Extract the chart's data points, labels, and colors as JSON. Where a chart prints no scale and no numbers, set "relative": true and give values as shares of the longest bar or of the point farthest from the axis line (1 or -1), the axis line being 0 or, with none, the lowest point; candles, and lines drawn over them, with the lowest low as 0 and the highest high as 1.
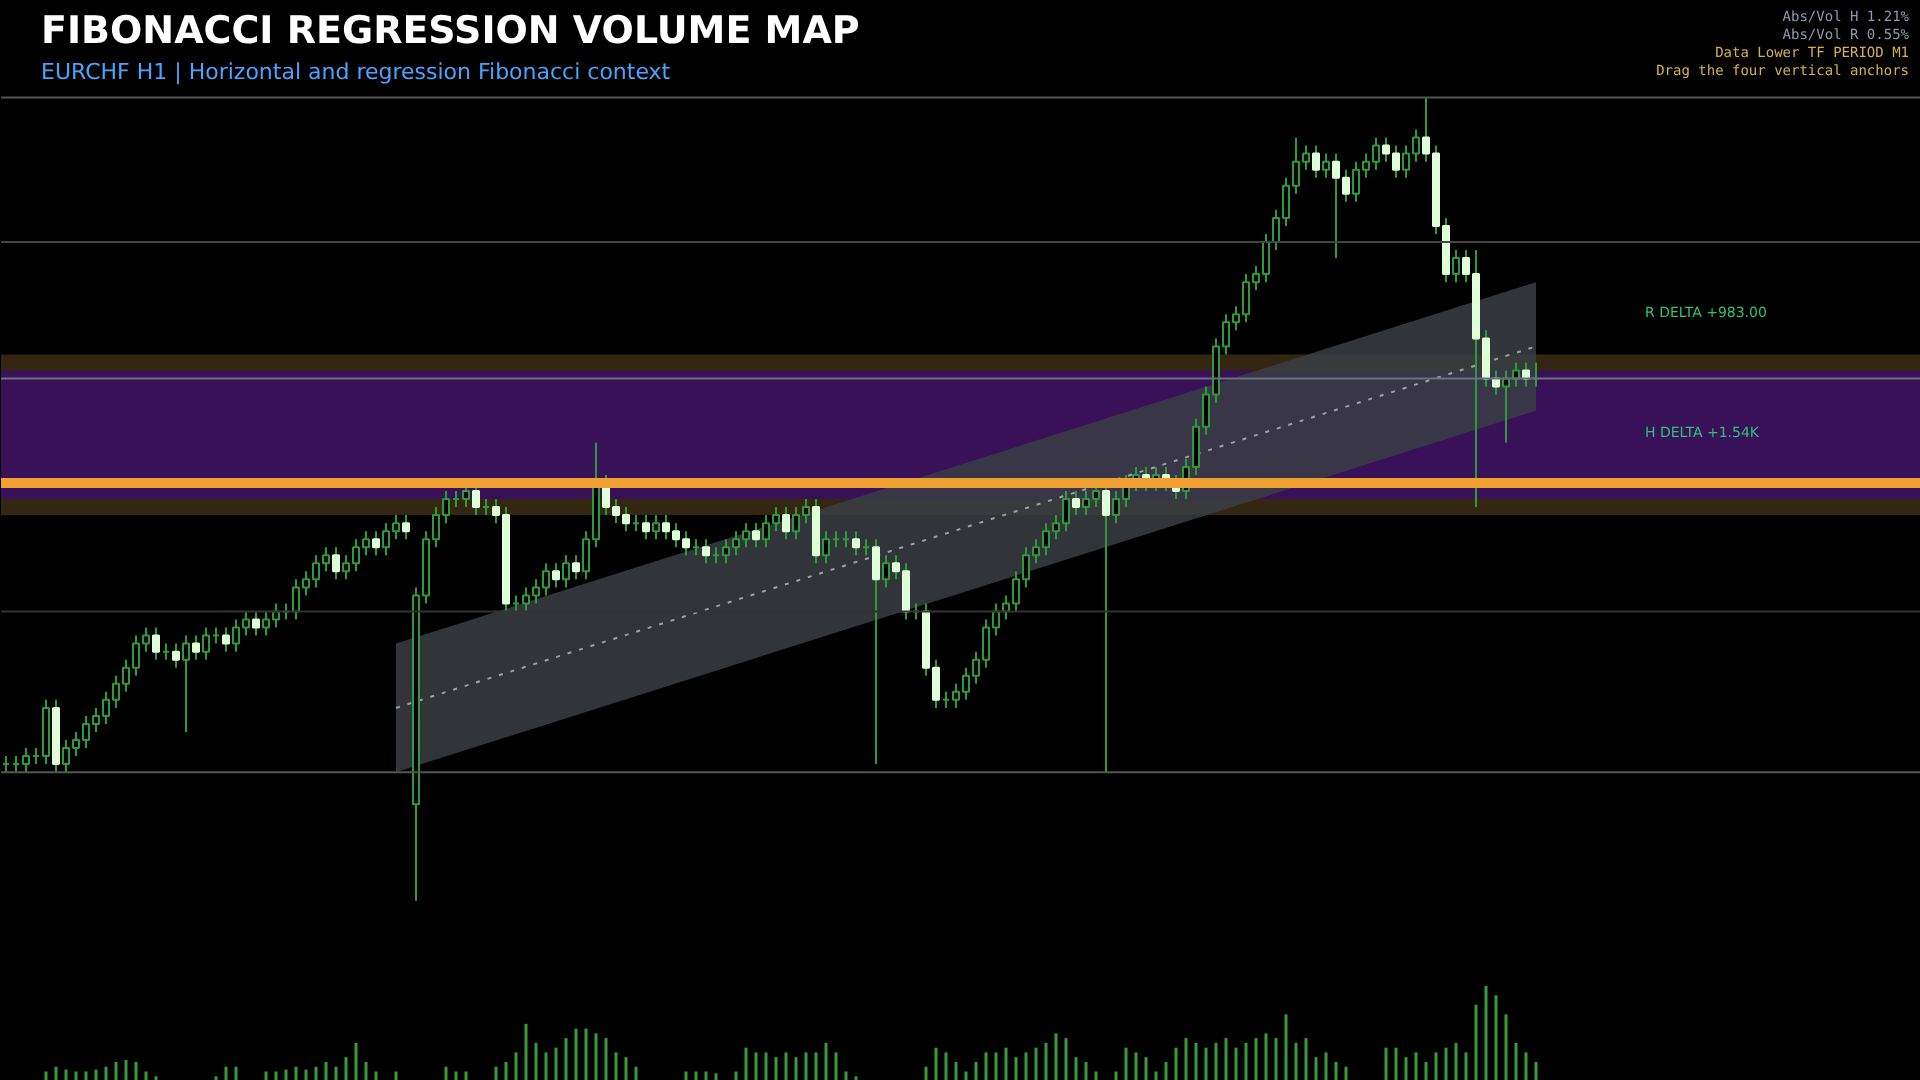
{
  "chart_data": [
    {
      "type": "candlestick",
      "title": "FIBONACCI REGRESSION VOLUME MAP",
      "subtitle": "EURCHF H1  |  Horizontal and regression Fibonacci context",
      "relative": true,
      "tick_labels": false,
      "grid": false,
      "categories": [
        null,
        null,
        null,
        null,
        null,
        null,
        null,
        null,
        null,
        null,
        null,
        null,
        null,
        null,
        null,
        null,
        null,
        null,
        null,
        null,
        null,
        null,
        null,
        null,
        null,
        null,
        null,
        null,
        null,
        null,
        null,
        null,
        null,
        null,
        null,
        null,
        null,
        null,
        null,
        null,
        null,
        null,
        null,
        null,
        null,
        null,
        null,
        null,
        null,
        null,
        null,
        null,
        null,
        null,
        null,
        null,
        null,
        null,
        null,
        null,
        null,
        null,
        null,
        null,
        null,
        null,
        null,
        null,
        null,
        null,
        null,
        null,
        null,
        null,
        null,
        null,
        null,
        null,
        null,
        null,
        null,
        null,
        null,
        null,
        null,
        null,
        null,
        null,
        null,
        null,
        null,
        null,
        null,
        null,
        null,
        null,
        null,
        null,
        null,
        null,
        null,
        null,
        null,
        null,
        null,
        null,
        null,
        null,
        null,
        null,
        null,
        null,
        null,
        null,
        null,
        null,
        null,
        null,
        null,
        null,
        null,
        null,
        null,
        null,
        null,
        null,
        null,
        null,
        null,
        null,
        null,
        null,
        null,
        null,
        null,
        null,
        null,
        null,
        null,
        null,
        null,
        null,
        null,
        null,
        null,
        null,
        null,
        null,
        null,
        null,
        null,
        null,
        null,
        null
      ],
      "ohlc": [
        [
          0.17,
          0.18,
          0.16,
          0.17
        ],
        [
          0.17,
          0.18,
          0.16,
          0.17
        ],
        [
          0.17,
          0.19,
          0.16,
          0.18
        ],
        [
          0.18,
          0.19,
          0.17,
          0.18
        ],
        [
          0.18,
          0.25,
          0.17,
          0.24
        ],
        [
          0.24,
          0.25,
          0.16,
          0.17
        ],
        [
          0.17,
          0.2,
          0.16,
          0.19
        ],
        [
          0.19,
          0.21,
          0.18,
          0.2
        ],
        [
          0.2,
          0.23,
          0.19,
          0.22
        ],
        [
          0.22,
          0.24,
          0.21,
          0.23
        ],
        [
          0.23,
          0.26,
          0.22,
          0.25
        ],
        [
          0.25,
          0.28,
          0.24,
          0.27
        ],
        [
          0.27,
          0.3,
          0.26,
          0.29
        ],
        [
          0.29,
          0.33,
          0.28,
          0.32
        ],
        [
          0.32,
          0.34,
          0.31,
          0.33
        ],
        [
          0.33,
          0.34,
          0.3,
          0.31
        ],
        [
          0.31,
          0.32,
          0.3,
          0.31
        ],
        [
          0.31,
          0.32,
          0.29,
          0.3
        ],
        [
          0.3,
          0.33,
          0.21,
          0.32
        ],
        [
          0.32,
          0.33,
          0.3,
          0.31
        ],
        [
          0.31,
          0.34,
          0.3,
          0.33
        ],
        [
          0.33,
          0.34,
          0.32,
          0.33
        ],
        [
          0.33,
          0.34,
          0.31,
          0.32
        ],
        [
          0.32,
          0.35,
          0.31,
          0.34
        ],
        [
          0.34,
          0.36,
          0.33,
          0.35
        ],
        [
          0.35,
          0.36,
          0.33,
          0.34
        ],
        [
          0.34,
          0.36,
          0.33,
          0.35
        ],
        [
          0.35,
          0.37,
          0.34,
          0.36
        ],
        [
          0.36,
          0.37,
          0.35,
          0.36
        ],
        [
          0.36,
          0.4,
          0.35,
          0.39
        ],
        [
          0.39,
          0.41,
          0.38,
          0.4
        ],
        [
          0.4,
          0.43,
          0.39,
          0.42
        ],
        [
          0.42,
          0.44,
          0.41,
          0.43
        ],
        [
          0.43,
          0.44,
          0.4,
          0.41
        ],
        [
          0.41,
          0.43,
          0.4,
          0.42
        ],
        [
          0.42,
          0.45,
          0.41,
          0.44
        ],
        [
          0.44,
          0.46,
          0.43,
          0.45
        ],
        [
          0.45,
          0.46,
          0.43,
          0.44
        ],
        [
          0.44,
          0.47,
          0.43,
          0.46
        ],
        [
          0.46,
          0.48,
          0.45,
          0.47
        ],
        [
          0.47,
          0.48,
          0.45,
          0.46
        ],
        [
          0.12,
          0.39,
          0,
          0.38
        ],
        [
          0.38,
          0.46,
          0.37,
          0.45
        ],
        [
          0.45,
          0.49,
          0.44,
          0.48
        ],
        [
          0.48,
          0.51,
          0.47,
          0.5
        ],
        [
          0.5,
          0.51,
          0.49,
          0.5
        ],
        [
          0.5,
          0.52,
          0.49,
          0.51
        ],
        [
          0.51,
          0.52,
          0.48,
          0.49
        ],
        [
          0.49,
          0.5,
          0.48,
          0.49
        ],
        [
          0.49,
          0.5,
          0.47,
          0.48
        ],
        [
          0.48,
          0.49,
          0.36,
          0.37
        ],
        [
          0.37,
          0.38,
          0.36,
          0.37
        ],
        [
          0.37,
          0.39,
          0.36,
          0.38
        ],
        [
          0.38,
          0.4,
          0.37,
          0.39
        ],
        [
          0.39,
          0.42,
          0.38,
          0.41
        ],
        [
          0.41,
          0.42,
          0.39,
          0.4
        ],
        [
          0.4,
          0.43,
          0.39,
          0.42
        ],
        [
          0.42,
          0.43,
          0.4,
          0.41
        ],
        [
          0.41,
          0.46,
          0.4,
          0.45
        ],
        [
          0.45,
          0.57,
          0.44,
          0.52
        ],
        [
          0.52,
          0.53,
          0.48,
          0.49
        ],
        [
          0.49,
          0.5,
          0.47,
          0.48
        ],
        [
          0.48,
          0.49,
          0.46,
          0.47
        ],
        [
          0.47,
          0.48,
          0.46,
          0.47
        ],
        [
          0.47,
          0.48,
          0.45,
          0.46
        ],
        [
          0.46,
          0.48,
          0.45,
          0.47
        ],
        [
          0.47,
          0.48,
          0.45,
          0.46
        ],
        [
          0.46,
          0.47,
          0.44,
          0.45
        ],
        [
          0.45,
          0.46,
          0.43,
          0.44
        ],
        [
          0.44,
          0.45,
          0.43,
          0.44
        ],
        [
          0.44,
          0.45,
          0.42,
          0.43
        ],
        [
          0.43,
          0.44,
          0.42,
          0.43
        ],
        [
          0.43,
          0.45,
          0.42,
          0.44
        ],
        [
          0.44,
          0.46,
          0.43,
          0.45
        ],
        [
          0.45,
          0.47,
          0.44,
          0.46
        ],
        [
          0.46,
          0.47,
          0.44,
          0.45
        ],
        [
          0.45,
          0.48,
          0.44,
          0.47
        ],
        [
          0.47,
          0.49,
          0.46,
          0.48
        ],
        [
          0.48,
          0.49,
          0.45,
          0.46
        ],
        [
          0.46,
          0.49,
          0.45,
          0.48
        ],
        [
          0.48,
          0.5,
          0.47,
          0.49
        ],
        [
          0.49,
          0.5,
          0.42,
          0.43
        ],
        [
          0.43,
          0.46,
          0.42,
          0.45
        ],
        [
          0.45,
          0.46,
          0.44,
          0.45
        ],
        [
          0.45,
          0.46,
          0.44,
          0.45
        ],
        [
          0.45,
          0.46,
          0.43,
          0.44
        ],
        [
          0.44,
          0.45,
          0.43,
          0.44
        ],
        [
          0.44,
          0.45,
          0.17,
          0.4
        ],
        [
          0.4,
          0.43,
          0.39,
          0.42
        ],
        [
          0.42,
          0.43,
          0.4,
          0.41
        ],
        [
          0.41,
          0.42,
          0.35,
          0.36
        ],
        [
          0.36,
          0.37,
          0.35,
          0.36
        ],
        [
          0.36,
          0.37,
          0.28,
          0.29
        ],
        [
          0.29,
          0.3,
          0.24,
          0.25
        ],
        [
          0.25,
          0.26,
          0.24,
          0.25
        ],
        [
          0.25,
          0.27,
          0.24,
          0.26
        ],
        [
          0.26,
          0.29,
          0.25,
          0.28
        ],
        [
          0.28,
          0.31,
          0.27,
          0.3
        ],
        [
          0.3,
          0.35,
          0.29,
          0.34
        ],
        [
          0.34,
          0.37,
          0.33,
          0.36
        ],
        [
          0.36,
          0.38,
          0.35,
          0.37
        ],
        [
          0.37,
          0.41,
          0.36,
          0.4
        ],
        [
          0.4,
          0.44,
          0.39,
          0.43
        ],
        [
          0.43,
          0.45,
          0.42,
          0.44
        ],
        [
          0.44,
          0.47,
          0.43,
          0.46
        ],
        [
          0.46,
          0.48,
          0.45,
          0.47
        ],
        [
          0.47,
          0.51,
          0.46,
          0.5
        ],
        [
          0.5,
          0.51,
          0.48,
          0.49
        ],
        [
          0.49,
          0.51,
          0.48,
          0.5
        ],
        [
          0.5,
          0.52,
          0.49,
          0.51
        ],
        [
          0.51,
          0.52,
          0.16,
          0.48
        ],
        [
          0.48,
          0.51,
          0.47,
          0.5
        ],
        [
          0.5,
          0.53,
          0.49,
          0.52
        ],
        [
          0.52,
          0.54,
          0.51,
          0.53
        ],
        [
          0.53,
          0.54,
          0.51,
          0.52
        ],
        [
          0.52,
          0.54,
          0.51,
          0.53
        ],
        [
          0.53,
          0.54,
          0.51,
          0.52
        ],
        [
          0.52,
          0.53,
          0.5,
          0.51
        ],
        [
          0.51,
          0.55,
          0.5,
          0.54
        ],
        [
          0.54,
          0.6,
          0.53,
          0.59
        ],
        [
          0.59,
          0.64,
          0.58,
          0.63
        ],
        [
          0.63,
          0.7,
          0.62,
          0.69
        ],
        [
          0.69,
          0.73,
          0.68,
          0.72
        ],
        [
          0.72,
          0.74,
          0.71,
          0.73
        ],
        [
          0.73,
          0.78,
          0.72,
          0.77
        ],
        [
          0.77,
          0.79,
          0.76,
          0.78
        ],
        [
          0.78,
          0.83,
          0.77,
          0.82
        ],
        [
          0.82,
          0.86,
          0.81,
          0.85
        ],
        [
          0.85,
          0.9,
          0.84,
          0.89
        ],
        [
          0.89,
          0.95,
          0.88,
          0.92
        ],
        [
          0.92,
          0.94,
          0.91,
          0.93
        ],
        [
          0.93,
          0.94,
          0.9,
          0.91
        ],
        [
          0.91,
          0.93,
          0.9,
          0.92
        ],
        [
          0.92,
          0.93,
          0.8,
          0.9
        ],
        [
          0.9,
          0.91,
          0.87,
          0.88
        ],
        [
          0.88,
          0.92,
          0.87,
          0.91
        ],
        [
          0.91,
          0.93,
          0.9,
          0.92
        ],
        [
          0.92,
          0.95,
          0.91,
          0.94
        ],
        [
          0.94,
          0.95,
          0.92,
          0.93
        ],
        [
          0.93,
          0.94,
          0.9,
          0.91
        ],
        [
          0.91,
          0.94,
          0.9,
          0.93
        ],
        [
          0.93,
          0.96,
          0.92,
          0.95
        ],
        [
          0.95,
          1,
          0.92,
          0.93
        ],
        [
          0.93,
          0.94,
          0.83,
          0.84
        ],
        [
          0.84,
          0.85,
          0.77,
          0.78
        ],
        [
          0.78,
          0.81,
          0.77,
          0.8
        ],
        [
          0.8,
          0.81,
          0.77,
          0.78
        ],
        [
          0.78,
          0.81,
          0.49,
          0.7
        ],
        [
          0.7,
          0.71,
          0.64,
          0.65
        ],
        [
          0.65,
          0.66,
          0.63,
          0.64
        ],
        [
          0.64,
          0.66,
          0.57,
          0.65
        ],
        [
          0.65,
          0.67,
          0.64,
          0.66
        ],
        [
          0.66,
          0.67,
          0.64,
          0.65
        ],
        [
          0.65,
          0.67,
          0.64,
          0.65
        ]
      ],
      "series": [
        {
          "type": "line",
          "color": "#a0a0a0",
          "line_style": "dotted",
          "values": [
            null,
            null,
            null,
            null,
            null,
            null,
            null,
            null,
            null,
            null,
            null,
            null,
            null,
            null,
            null,
            null,
            null,
            null,
            null,
            null,
            null,
            null,
            null,
            null,
            null,
            null,
            null,
            null,
            null,
            null,
            null,
            null,
            null,
            null,
            null,
            null,
            null,
            null,
            null,
            0.24,
            null,
            null,
            null,
            null,
            null,
            null,
            null,
            null,
            null,
            null,
            null,
            null,
            null,
            null,
            null,
            null,
            null,
            null,
            null,
            null,
            null,
            null,
            null,
            null,
            null,
            null,
            null,
            null,
            null,
            null,
            null,
            null,
            null,
            null,
            null,
            null,
            null,
            null,
            null,
            null,
            null,
            null,
            null,
            null,
            null,
            null,
            null,
            null,
            null,
            null,
            null,
            null,
            null,
            null,
            null,
            null,
            null,
            null,
            null,
            null,
            null,
            null,
            null,
            null,
            null,
            null,
            null,
            null,
            null,
            null,
            null,
            null,
            null,
            null,
            null,
            null,
            null,
            null,
            null,
            null,
            null,
            null,
            null,
            null,
            null,
            null,
            null,
            null,
            null,
            null,
            null,
            null,
            null,
            null,
            null,
            null,
            null,
            null,
            null,
            null,
            null,
            null,
            null,
            null,
            null,
            null,
            null,
            null,
            null,
            null,
            null,
            null,
            null,
            0.69
          ],
          "lower": [
            null,
            null,
            null,
            null,
            null,
            null,
            null,
            null,
            null,
            null,
            null,
            null,
            null,
            null,
            null,
            null,
            null,
            null,
            null,
            null,
            null,
            null,
            null,
            null,
            null,
            null,
            null,
            null,
            null,
            null,
            null,
            null,
            null,
            null,
            null,
            null,
            null,
            null,
            null,
            0.16,
            null,
            null,
            null,
            null,
            null,
            null,
            null,
            null,
            null,
            null,
            null,
            null,
            null,
            null,
            null,
            null,
            null,
            null,
            null,
            null,
            null,
            null,
            null,
            null,
            null,
            null,
            null,
            null,
            null,
            null,
            null,
            null,
            null,
            null,
            null,
            null,
            null,
            null,
            null,
            null,
            null,
            null,
            null,
            null,
            null,
            null,
            null,
            null,
            null,
            null,
            null,
            null,
            null,
            null,
            null,
            null,
            null,
            null,
            null,
            null,
            null,
            null,
            null,
            null,
            null,
            null,
            null,
            null,
            null,
            null,
            null,
            null,
            null,
            null,
            null,
            null,
            null,
            null,
            null,
            null,
            null,
            null,
            null,
            null,
            null,
            null,
            null,
            null,
            null,
            null,
            null,
            null,
            null,
            null,
            null,
            null,
            null,
            null,
            null,
            null,
            null,
            null,
            null,
            null,
            null,
            null,
            null,
            null,
            null,
            null,
            null,
            null,
            null,
            0.61
          ],
          "upper": [
            null,
            null,
            null,
            null,
            null,
            null,
            null,
            null,
            null,
            null,
            null,
            null,
            null,
            null,
            null,
            null,
            null,
            null,
            null,
            null,
            null,
            null,
            null,
            null,
            null,
            null,
            null,
            null,
            null,
            null,
            null,
            null,
            null,
            null,
            null,
            null,
            null,
            null,
            null,
            0.32,
            null,
            null,
            null,
            null,
            null,
            null,
            null,
            null,
            null,
            null,
            null,
            null,
            null,
            null,
            null,
            null,
            null,
            null,
            null,
            null,
            null,
            null,
            null,
            null,
            null,
            null,
            null,
            null,
            null,
            null,
            null,
            null,
            null,
            null,
            null,
            null,
            null,
            null,
            null,
            null,
            null,
            null,
            null,
            null,
            null,
            null,
            null,
            null,
            null,
            null,
            null,
            null,
            null,
            null,
            null,
            null,
            null,
            null,
            null,
            null,
            null,
            null,
            null,
            null,
            null,
            null,
            null,
            null,
            null,
            null,
            null,
            null,
            null,
            null,
            null,
            null,
            null,
            null,
            null,
            null,
            null,
            null,
            null,
            null,
            null,
            null,
            null,
            null,
            null,
            null,
            null,
            null,
            null,
            null,
            null,
            null,
            null,
            null,
            null,
            null,
            null,
            null,
            null,
            null,
            null,
            null,
            null,
            null,
            null,
            null,
            null,
            null,
            null,
            0.77
          ]
        }
      ],
      "ref_lines": [
        {
          "axis": "y",
          "value": 1,
          "color": "#555555",
          "line_style": "solid"
        },
        {
          "axis": "y",
          "value": 0.82,
          "color": "#444444",
          "line_style": "solid"
        },
        {
          "axis": "y",
          "value": 0.65,
          "color": "#6a7080",
          "line_style": "solid"
        },
        {
          "axis": "y",
          "value": 0.52,
          "color": "#f0a030",
          "line_style": "solid"
        },
        {
          "axis": "y",
          "value": 0.36,
          "color": "#333333",
          "line_style": "solid"
        },
        {
          "axis": "y",
          "value": 0.16,
          "color": "#555555",
          "line_style": "solid"
        }
      ],
      "bands": [
        {
          "axis": "y",
          "from": 0.48,
          "to": 0.68,
          "color": "#3a2a12"
        },
        {
          "axis": "y",
          "from": 0.5,
          "to": 0.66,
          "color": "#3a1060"
        }
      ],
      "annotations": [
        "R DELTA +983.00",
        "H DELTA +1.54K",
        "Abs/Vol H 1.21%",
        "Abs/Vol R 0.55%",
        "Data Lower TF PERIOD M1",
        "Drag the four vertical anchors"
      ]
    },
    {
      "type": "bar",
      "relative": true,
      "tick_labels": false,
      "grid": false,
      "color": "#3c9a3c",
      "categories": [
        null,
        null,
        null,
        null,
        null,
        null,
        null,
        null,
        null,
        null,
        null,
        null,
        null,
        null,
        null,
        null,
        null,
        null,
        null,
        null,
        null,
        null,
        null,
        null,
        null,
        null,
        null,
        null,
        null,
        null,
        null,
        null,
        null,
        null,
        null,
        null,
        null,
        null,
        null,
        null,
        null,
        null,
        null,
        null,
        null,
        null,
        null,
        null,
        null,
        null,
        null,
        null,
        null,
        null,
        null,
        null,
        null,
        null,
        null,
        null,
        null,
        null,
        null,
        null,
        null,
        null,
        null,
        null,
        null,
        null,
        null,
        null,
        null,
        null,
        null,
        null,
        null,
        null,
        null,
        null,
        null,
        null,
        null,
        null,
        null,
        null,
        null,
        null,
        null,
        null,
        null,
        null,
        null,
        null,
        null,
        null,
        null,
        null,
        null,
        null,
        null,
        null,
        null,
        null,
        null,
        null,
        null,
        null,
        null,
        null,
        null,
        null,
        null,
        null,
        null,
        null,
        null,
        null,
        null,
        null,
        null,
        null,
        null,
        null,
        null,
        null,
        null,
        null,
        null,
        null,
        null,
        null,
        null,
        null,
        null,
        null,
        null,
        null,
        null,
        null,
        null,
        null,
        null,
        null,
        null,
        null,
        null,
        null,
        null,
        null,
        null,
        null,
        null,
        null
      ],
      "values": [
        0,
        0,
        0,
        0,
        0.1,
        0.15,
        0.12,
        0.1,
        0.1,
        0.12,
        0.15,
        0.2,
        0.22,
        0.2,
        0.1,
        0.05,
        0,
        0,
        0,
        0,
        0,
        0.05,
        0.15,
        0.15,
        0,
        0,
        0.1,
        0.1,
        0.12,
        0.15,
        0.12,
        0.15,
        0.2,
        0.15,
        0.25,
        0.4,
        0.2,
        0.1,
        0,
        0.1,
        0,
        0,
        0,
        0,
        0.15,
        0.1,
        0.1,
        0,
        0,
        0.15,
        0.2,
        0.3,
        0.6,
        0.4,
        0.3,
        0.35,
        0.45,
        0.55,
        0.55,
        0.5,
        0.45,
        0.3,
        0.25,
        0.15,
        0,
        0,
        0,
        0,
        0.1,
        0.1,
        0.1,
        0.08,
        0,
        0.1,
        0.35,
        0.3,
        0.3,
        0.25,
        0.3,
        0.25,
        0.3,
        0.3,
        0.4,
        0.3,
        0.1,
        0.05,
        0,
        0,
        0,
        0,
        0,
        0,
        0.15,
        0.35,
        0.3,
        0.2,
        0.1,
        0.2,
        0.3,
        0.3,
        0.35,
        0.25,
        0.3,
        0.35,
        0.4,
        0.5,
        0.45,
        0.25,
        0.2,
        0.1,
        0,
        0.1,
        0.35,
        0.3,
        0.25,
        0.1,
        0.2,
        0.35,
        0.45,
        0.4,
        0.35,
        0.4,
        0.45,
        0.35,
        0.4,
        0.45,
        0.5,
        0.45,
        0.7,
        0.4,
        0.45,
        0.25,
        0.3,
        0.2,
        0.15,
        0,
        0,
        0,
        0.35,
        0.35,
        0.25,
        0.3,
        0.2,
        0.3,
        0.35,
        0.4,
        0.3,
        0.8,
        1,
        0.9,
        0.7,
        0.4,
        0.3,
        0.2
      ]
    }
  ]
}
